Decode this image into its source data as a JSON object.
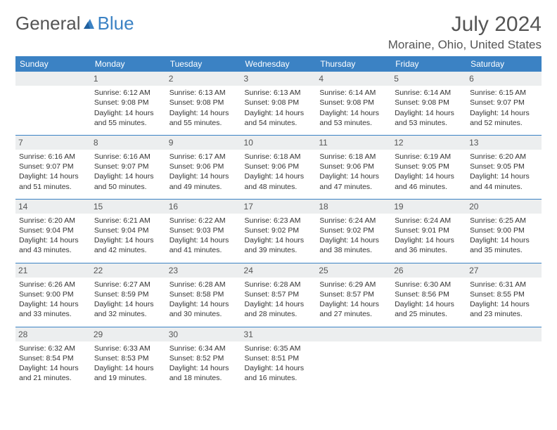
{
  "logo": {
    "part1": "General",
    "part2": "Blue"
  },
  "title": "July 2024",
  "location": "Moraine, Ohio, United States",
  "colors": {
    "header_bg": "#3b82c4",
    "header_text": "#ffffff",
    "daynum_bg": "#eceeef",
    "text": "#333333",
    "rule": "#3b82c4"
  },
  "day_headers": [
    "Sunday",
    "Monday",
    "Tuesday",
    "Wednesday",
    "Thursday",
    "Friday",
    "Saturday"
  ],
  "weeks": [
    [
      {
        "n": "",
        "lines": []
      },
      {
        "n": "1",
        "lines": [
          "Sunrise: 6:12 AM",
          "Sunset: 9:08 PM",
          "Daylight: 14 hours and 55 minutes."
        ]
      },
      {
        "n": "2",
        "lines": [
          "Sunrise: 6:13 AM",
          "Sunset: 9:08 PM",
          "Daylight: 14 hours and 55 minutes."
        ]
      },
      {
        "n": "3",
        "lines": [
          "Sunrise: 6:13 AM",
          "Sunset: 9:08 PM",
          "Daylight: 14 hours and 54 minutes."
        ]
      },
      {
        "n": "4",
        "lines": [
          "Sunrise: 6:14 AM",
          "Sunset: 9:08 PM",
          "Daylight: 14 hours and 53 minutes."
        ]
      },
      {
        "n": "5",
        "lines": [
          "Sunrise: 6:14 AM",
          "Sunset: 9:08 PM",
          "Daylight: 14 hours and 53 minutes."
        ]
      },
      {
        "n": "6",
        "lines": [
          "Sunrise: 6:15 AM",
          "Sunset: 9:07 PM",
          "Daylight: 14 hours and 52 minutes."
        ]
      }
    ],
    [
      {
        "n": "7",
        "lines": [
          "Sunrise: 6:16 AM",
          "Sunset: 9:07 PM",
          "Daylight: 14 hours and 51 minutes."
        ]
      },
      {
        "n": "8",
        "lines": [
          "Sunrise: 6:16 AM",
          "Sunset: 9:07 PM",
          "Daylight: 14 hours and 50 minutes."
        ]
      },
      {
        "n": "9",
        "lines": [
          "Sunrise: 6:17 AM",
          "Sunset: 9:06 PM",
          "Daylight: 14 hours and 49 minutes."
        ]
      },
      {
        "n": "10",
        "lines": [
          "Sunrise: 6:18 AM",
          "Sunset: 9:06 PM",
          "Daylight: 14 hours and 48 minutes."
        ]
      },
      {
        "n": "11",
        "lines": [
          "Sunrise: 6:18 AM",
          "Sunset: 9:06 PM",
          "Daylight: 14 hours and 47 minutes."
        ]
      },
      {
        "n": "12",
        "lines": [
          "Sunrise: 6:19 AM",
          "Sunset: 9:05 PM",
          "Daylight: 14 hours and 46 minutes."
        ]
      },
      {
        "n": "13",
        "lines": [
          "Sunrise: 6:20 AM",
          "Sunset: 9:05 PM",
          "Daylight: 14 hours and 44 minutes."
        ]
      }
    ],
    [
      {
        "n": "14",
        "lines": [
          "Sunrise: 6:20 AM",
          "Sunset: 9:04 PM",
          "Daylight: 14 hours and 43 minutes."
        ]
      },
      {
        "n": "15",
        "lines": [
          "Sunrise: 6:21 AM",
          "Sunset: 9:04 PM",
          "Daylight: 14 hours and 42 minutes."
        ]
      },
      {
        "n": "16",
        "lines": [
          "Sunrise: 6:22 AM",
          "Sunset: 9:03 PM",
          "Daylight: 14 hours and 41 minutes."
        ]
      },
      {
        "n": "17",
        "lines": [
          "Sunrise: 6:23 AM",
          "Sunset: 9:02 PM",
          "Daylight: 14 hours and 39 minutes."
        ]
      },
      {
        "n": "18",
        "lines": [
          "Sunrise: 6:24 AM",
          "Sunset: 9:02 PM",
          "Daylight: 14 hours and 38 minutes."
        ]
      },
      {
        "n": "19",
        "lines": [
          "Sunrise: 6:24 AM",
          "Sunset: 9:01 PM",
          "Daylight: 14 hours and 36 minutes."
        ]
      },
      {
        "n": "20",
        "lines": [
          "Sunrise: 6:25 AM",
          "Sunset: 9:00 PM",
          "Daylight: 14 hours and 35 minutes."
        ]
      }
    ],
    [
      {
        "n": "21",
        "lines": [
          "Sunrise: 6:26 AM",
          "Sunset: 9:00 PM",
          "Daylight: 14 hours and 33 minutes."
        ]
      },
      {
        "n": "22",
        "lines": [
          "Sunrise: 6:27 AM",
          "Sunset: 8:59 PM",
          "Daylight: 14 hours and 32 minutes."
        ]
      },
      {
        "n": "23",
        "lines": [
          "Sunrise: 6:28 AM",
          "Sunset: 8:58 PM",
          "Daylight: 14 hours and 30 minutes."
        ]
      },
      {
        "n": "24",
        "lines": [
          "Sunrise: 6:28 AM",
          "Sunset: 8:57 PM",
          "Daylight: 14 hours and 28 minutes."
        ]
      },
      {
        "n": "25",
        "lines": [
          "Sunrise: 6:29 AM",
          "Sunset: 8:57 PM",
          "Daylight: 14 hours and 27 minutes."
        ]
      },
      {
        "n": "26",
        "lines": [
          "Sunrise: 6:30 AM",
          "Sunset: 8:56 PM",
          "Daylight: 14 hours and 25 minutes."
        ]
      },
      {
        "n": "27",
        "lines": [
          "Sunrise: 6:31 AM",
          "Sunset: 8:55 PM",
          "Daylight: 14 hours and 23 minutes."
        ]
      }
    ],
    [
      {
        "n": "28",
        "lines": [
          "Sunrise: 6:32 AM",
          "Sunset: 8:54 PM",
          "Daylight: 14 hours and 21 minutes."
        ]
      },
      {
        "n": "29",
        "lines": [
          "Sunrise: 6:33 AM",
          "Sunset: 8:53 PM",
          "Daylight: 14 hours and 19 minutes."
        ]
      },
      {
        "n": "30",
        "lines": [
          "Sunrise: 6:34 AM",
          "Sunset: 8:52 PM",
          "Daylight: 14 hours and 18 minutes."
        ]
      },
      {
        "n": "31",
        "lines": [
          "Sunrise: 6:35 AM",
          "Sunset: 8:51 PM",
          "Daylight: 14 hours and 16 minutes."
        ]
      },
      {
        "n": "",
        "lines": []
      },
      {
        "n": "",
        "lines": []
      },
      {
        "n": "",
        "lines": []
      }
    ]
  ]
}
